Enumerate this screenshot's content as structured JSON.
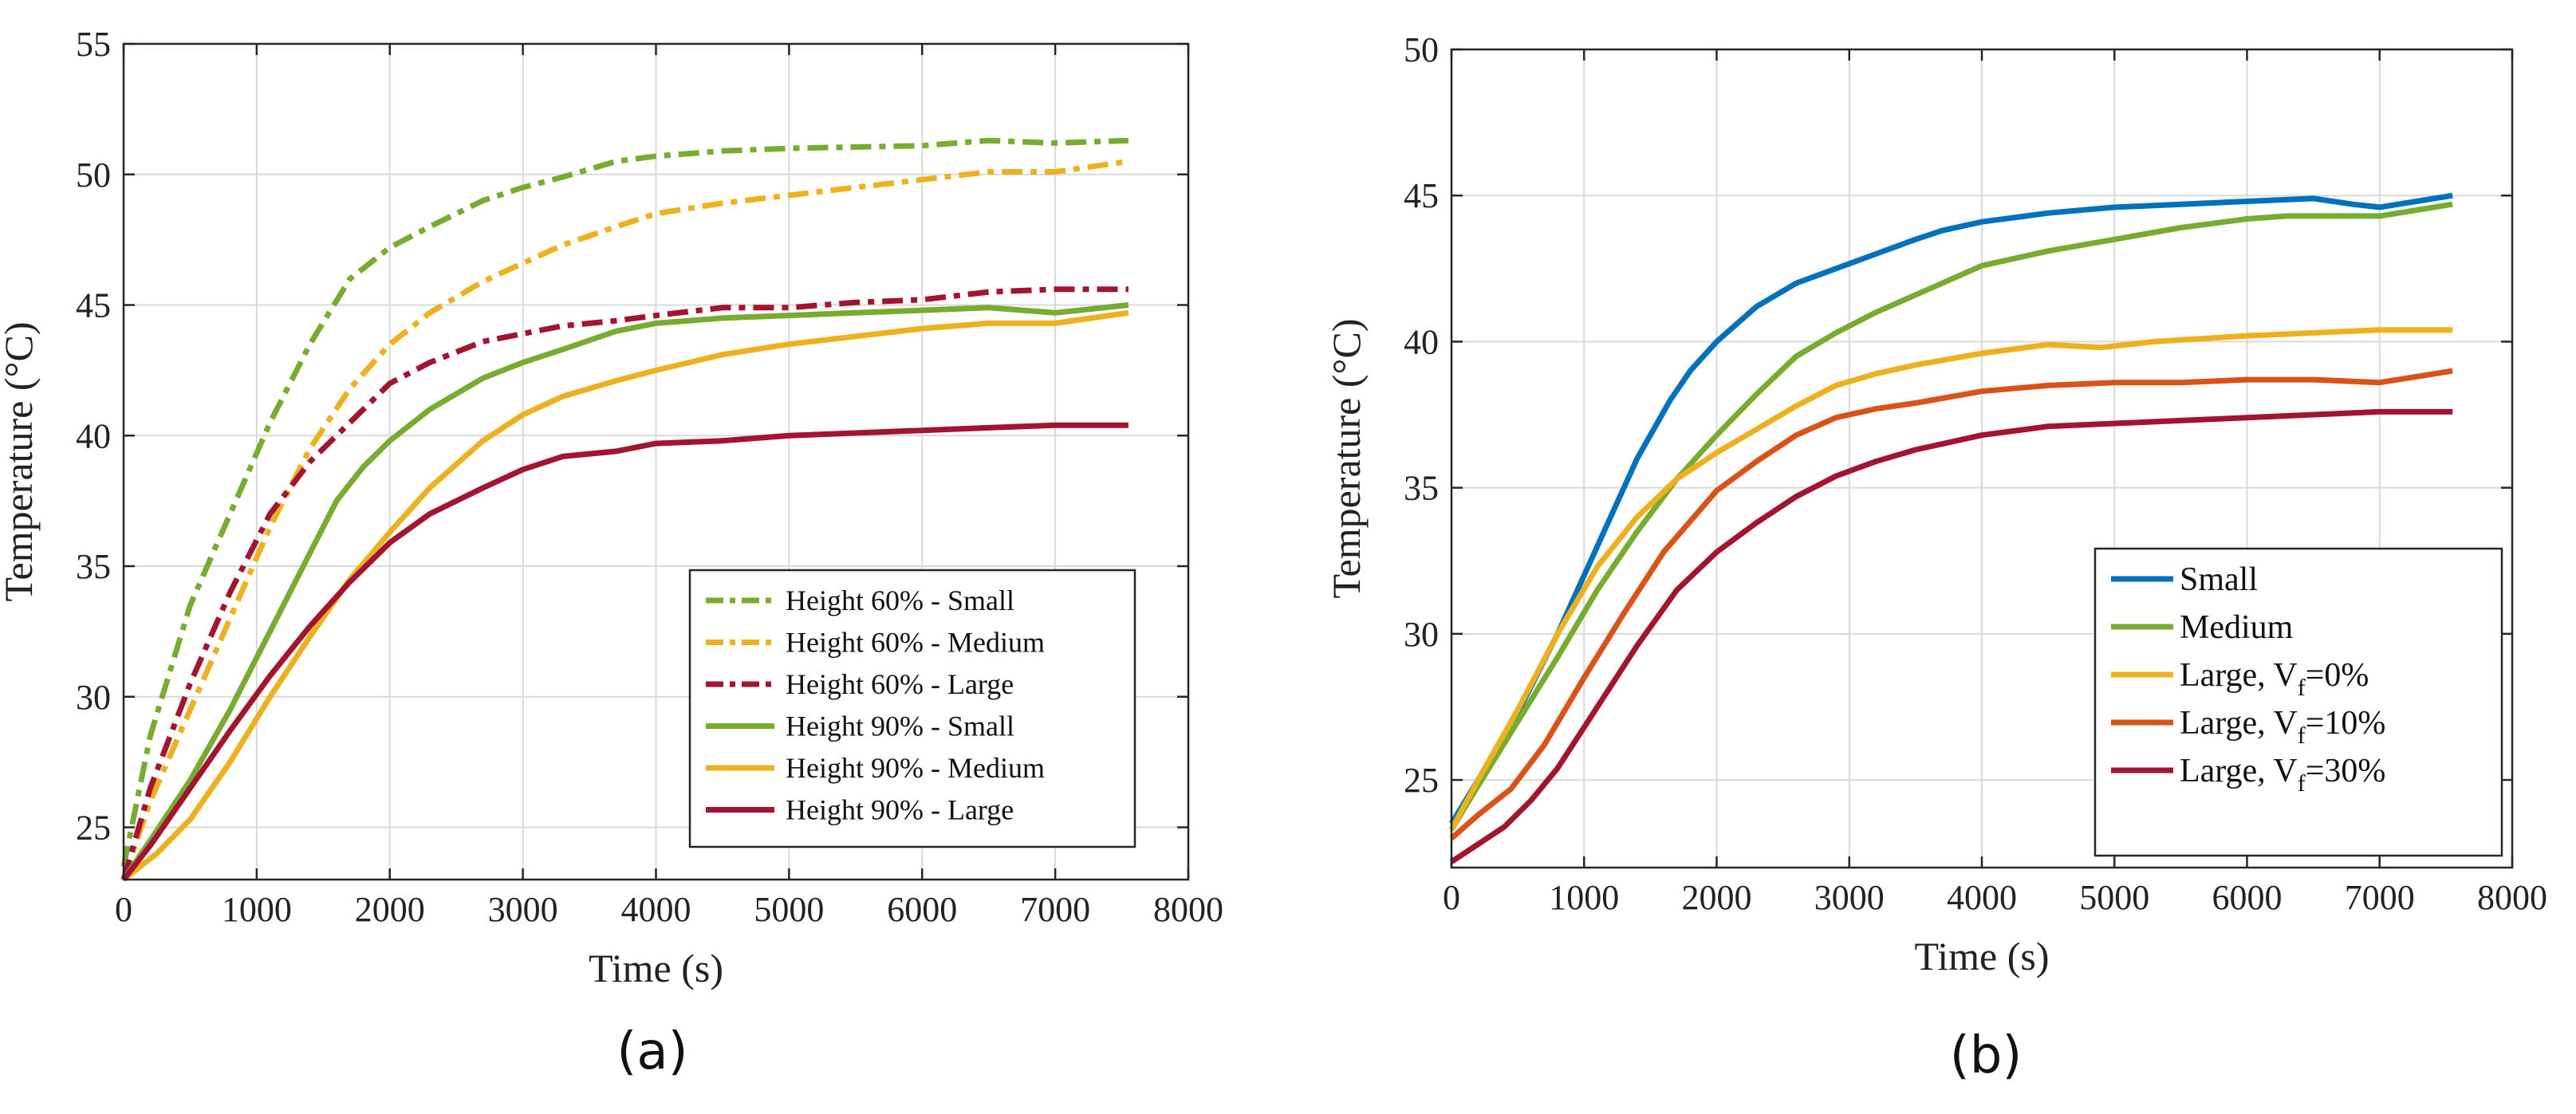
{
  "colors": {
    "green": "#77AC30",
    "yellow": "#EDB120",
    "darkred": "#A2142F",
    "blue": "#0072BD",
    "orange": "#D95319",
    "grid": "#d9d9d9",
    "axis": "#262626"
  },
  "chart_data": [
    {
      "type": "line",
      "panel_label": "(a)",
      "xlabel": "Time (s)",
      "ylabel": "Temperature (°C)",
      "xlim": [
        0,
        8000
      ],
      "ylim": [
        23,
        55
      ],
      "xticks": [
        0,
        1000,
        2000,
        3000,
        4000,
        5000,
        6000,
        7000,
        8000
      ],
      "yticks": [
        25,
        30,
        35,
        40,
        45,
        50,
        55
      ],
      "legend_position": "bottom-right",
      "series": [
        {
          "name": "Height 60% - Small",
          "color": "#77AC30",
          "style": "dashdot",
          "x": [
            0,
            200,
            500,
            800,
            1100,
            1400,
            1700,
            2000,
            2300,
            2700,
            3000,
            3300,
            3700,
            4000,
            4500,
            5000,
            5500,
            6000,
            6500,
            7000,
            7550
          ],
          "y": [
            23.5,
            28.5,
            33.5,
            37,
            40.5,
            43.5,
            46,
            47.2,
            48,
            49,
            49.5,
            49.9,
            50.5,
            50.7,
            50.9,
            51,
            51.05,
            51.1,
            51.3,
            51.2,
            51.3
          ]
        },
        {
          "name": "Height 60% - Medium",
          "color": "#EDB120",
          "style": "dashdot",
          "x": [
            0,
            200,
            500,
            800,
            1100,
            1400,
            1700,
            2000,
            2300,
            2700,
            3000,
            3300,
            3700,
            4000,
            4500,
            5000,
            5500,
            6000,
            6500,
            7000,
            7550
          ],
          "y": [
            23,
            26,
            29.5,
            33,
            36.5,
            39.5,
            41.8,
            43.5,
            44.7,
            45.9,
            46.6,
            47.3,
            48,
            48.5,
            48.9,
            49.2,
            49.5,
            49.8,
            50.1,
            50.1,
            50.5
          ]
        },
        {
          "name": "Height 60% - Large",
          "color": "#A2142F",
          "style": "dashdot",
          "x": [
            0,
            200,
            500,
            800,
            1100,
            1400,
            1700,
            2000,
            2300,
            2700,
            3000,
            3300,
            3700,
            4000,
            4500,
            5000,
            5500,
            6000,
            6500,
            7000,
            7550
          ],
          "y": [
            23,
            26.5,
            30.5,
            34,
            37,
            39,
            40.5,
            42,
            42.8,
            43.6,
            43.9,
            44.2,
            44.4,
            44.6,
            44.9,
            44.9,
            45.1,
            45.2,
            45.5,
            45.6,
            45.6
          ]
        },
        {
          "name": "Height 90% - Small",
          "color": "#77AC30",
          "style": "solid",
          "x": [
            0,
            200,
            500,
            800,
            1100,
            1400,
            1600,
            1800,
            2000,
            2300,
            2700,
            3000,
            3300,
            3700,
            4000,
            4500,
            5000,
            5500,
            6000,
            6500,
            7000,
            7550
          ],
          "y": [
            23,
            24.5,
            26.8,
            29.5,
            32.5,
            35.5,
            37.5,
            38.8,
            39.8,
            41,
            42.2,
            42.8,
            43.3,
            44,
            44.3,
            44.5,
            44.6,
            44.7,
            44.8,
            44.9,
            44.7,
            45
          ]
        },
        {
          "name": "Height 90% - Medium",
          "color": "#EDB120",
          "style": "solid",
          "x": [
            0,
            250,
            500,
            800,
            1100,
            1400,
            1700,
            2000,
            2300,
            2700,
            3000,
            3300,
            3700,
            4000,
            4500,
            5000,
            5500,
            6000,
            6500,
            7000,
            7550
          ],
          "y": [
            23,
            24,
            25.3,
            27.5,
            30,
            32.3,
            34.5,
            36.3,
            38,
            39.8,
            40.8,
            41.5,
            42.1,
            42.5,
            43.1,
            43.5,
            43.8,
            44.1,
            44.3,
            44.3,
            44.7
          ]
        },
        {
          "name": "Height 90% - Large",
          "color": "#A2142F",
          "style": "solid",
          "x": [
            0,
            200,
            500,
            800,
            1100,
            1400,
            1700,
            2000,
            2300,
            2700,
            3000,
            3300,
            3700,
            4000,
            4500,
            5000,
            5500,
            6000,
            6500,
            7000,
            7550
          ],
          "y": [
            23,
            24.3,
            26.5,
            28.7,
            30.8,
            32.7,
            34.4,
            35.9,
            37,
            38,
            38.7,
            39.2,
            39.4,
            39.7,
            39.8,
            40,
            40.1,
            40.2,
            40.3,
            40.4,
            40.4
          ]
        }
      ]
    },
    {
      "type": "line",
      "panel_label": "(b)",
      "xlabel": "Time (s)",
      "ylabel": "Temperature (°C)",
      "xlim": [
        0,
        8000
      ],
      "ylim": [
        22,
        50
      ],
      "xticks": [
        0,
        1000,
        2000,
        3000,
        4000,
        5000,
        6000,
        7000,
        8000
      ],
      "yticks": [
        25,
        30,
        35,
        40,
        45,
        50
      ],
      "legend_position": "bottom-right",
      "series": [
        {
          "name": "Small",
          "sub": "",
          "suffix": "",
          "color": "#0072BD",
          "x": [
            0,
            200,
            500,
            800,
            1100,
            1400,
            1650,
            1800,
            2000,
            2300,
            2600,
            2900,
            3200,
            3500,
            3700,
            4000,
            4500,
            5000,
            5500,
            6000,
            6500,
            6800,
            7000,
            7550
          ],
          "y": [
            23.5,
            25,
            27.3,
            30,
            33,
            36,
            38,
            39,
            40,
            41.2,
            42,
            42.5,
            43,
            43.5,
            43.8,
            44.1,
            44.4,
            44.6,
            44.7,
            44.8,
            44.9,
            44.7,
            44.6,
            45
          ]
        },
        {
          "name": "Medium",
          "sub": "",
          "suffix": "",
          "color": "#77AC30",
          "x": [
            0,
            200,
            500,
            800,
            1100,
            1400,
            1700,
            2000,
            2300,
            2600,
            2900,
            3200,
            3500,
            4000,
            4500,
            5000,
            5500,
            6000,
            6300,
            7000,
            7550
          ],
          "y": [
            23.3,
            24.8,
            27,
            29.2,
            31.5,
            33.5,
            35.3,
            36.8,
            38.2,
            39.5,
            40.3,
            41,
            41.6,
            42.6,
            43.1,
            43.5,
            43.9,
            44.2,
            44.3,
            44.3,
            44.7
          ]
        },
        {
          "name": "Large, V",
          "sub": "f",
          "suffix": "=0%",
          "color": "#EDB120",
          "x": [
            0,
            200,
            500,
            800,
            1100,
            1400,
            1700,
            2000,
            2300,
            2600,
            2900,
            3200,
            3500,
            4000,
            4500,
            4900,
            5300,
            6000,
            7000,
            7550
          ],
          "y": [
            23.3,
            25,
            27.4,
            30,
            32.3,
            34,
            35.3,
            36.2,
            37,
            37.8,
            38.5,
            38.9,
            39.2,
            39.6,
            39.9,
            39.8,
            40,
            40.2,
            40.4,
            40.4
          ]
        },
        {
          "name": "Large, V",
          "sub": "f",
          "suffix": "=10%",
          "color": "#D95319",
          "x": [
            0,
            200,
            450,
            700,
            1000,
            1300,
            1600,
            2000,
            2300,
            2600,
            2900,
            3200,
            3500,
            4000,
            4500,
            5000,
            5500,
            6000,
            6500,
            7000,
            7550
          ],
          "y": [
            23,
            23.8,
            24.7,
            26.2,
            28.5,
            30.7,
            32.8,
            34.9,
            35.9,
            36.8,
            37.4,
            37.7,
            37.9,
            38.3,
            38.5,
            38.6,
            38.6,
            38.7,
            38.7,
            38.6,
            39
          ]
        },
        {
          "name": "Large, V",
          "sub": "f",
          "suffix": "=30%",
          "color": "#A2142F",
          "x": [
            0,
            200,
            400,
            600,
            800,
            1100,
            1400,
            1700,
            2000,
            2300,
            2600,
            2900,
            3200,
            3500,
            4000,
            4500,
            5000,
            5500,
            6000,
            6500,
            7000,
            7550
          ],
          "y": [
            22.2,
            22.8,
            23.4,
            24.3,
            25.4,
            27.5,
            29.6,
            31.5,
            32.8,
            33.8,
            34.7,
            35.4,
            35.9,
            36.3,
            36.8,
            37.1,
            37.2,
            37.3,
            37.4,
            37.5,
            37.6,
            37.6
          ]
        }
      ]
    }
  ]
}
